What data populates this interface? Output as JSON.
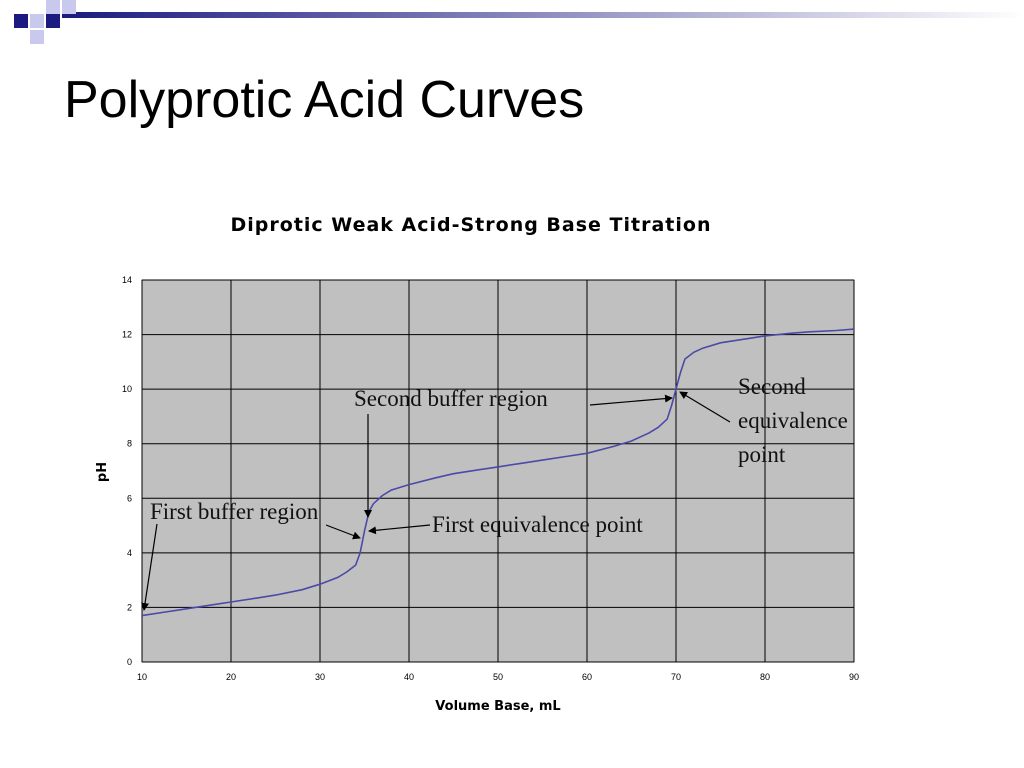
{
  "slide": {
    "title": "Polyprotic Acid Curves"
  },
  "colors": {
    "accent_dark": "#1a1a80",
    "accent_light": "#c9c9ee",
    "plot_background": "#c0c0c0",
    "curve": "#4a4aa8"
  },
  "chart_data": {
    "type": "line",
    "title": "Diprotic Weak Acid-Strong Base Titration",
    "xlabel": "Volume Base, mL",
    "ylabel": "pH",
    "xlim": [
      10,
      90
    ],
    "ylim": [
      0,
      14
    ],
    "x_ticks": [
      10,
      20,
      30,
      40,
      50,
      60,
      70,
      80,
      90
    ],
    "y_ticks": [
      0,
      2,
      4,
      6,
      8,
      10,
      12,
      14
    ],
    "grid": true,
    "series": [
      {
        "x": [
          10,
          13,
          15,
          18,
          20,
          23,
          25,
          28,
          30,
          32,
          33,
          34,
          34.5,
          35,
          35.5,
          36,
          37,
          38,
          40,
          43,
          45,
          48,
          50,
          53,
          55,
          58,
          60,
          63,
          65,
          67,
          68,
          69,
          69.5,
          70,
          70.5,
          71,
          72,
          73,
          75,
          78,
          80,
          83,
          85,
          88,
          90
        ],
        "y": [
          1.7,
          1.85,
          1.95,
          2.1,
          2.2,
          2.35,
          2.45,
          2.65,
          2.85,
          3.1,
          3.3,
          3.55,
          4.0,
          4.8,
          5.5,
          5.8,
          6.1,
          6.3,
          6.5,
          6.75,
          6.9,
          7.05,
          7.15,
          7.3,
          7.4,
          7.55,
          7.65,
          7.9,
          8.1,
          8.4,
          8.6,
          8.9,
          9.4,
          10.0,
          10.6,
          11.1,
          11.35,
          11.5,
          11.7,
          11.85,
          11.95,
          12.05,
          12.1,
          12.15,
          12.2
        ]
      }
    ],
    "annotations": [
      {
        "id": "first-buffer",
        "text": "First buffer region"
      },
      {
        "id": "second-buffer",
        "text": "Second buffer region"
      },
      {
        "id": "first-equivalence",
        "text": "First equivalence point"
      },
      {
        "id": "second-equivalence",
        "lines": [
          "Second",
          "equivalence",
          "point"
        ]
      }
    ]
  }
}
